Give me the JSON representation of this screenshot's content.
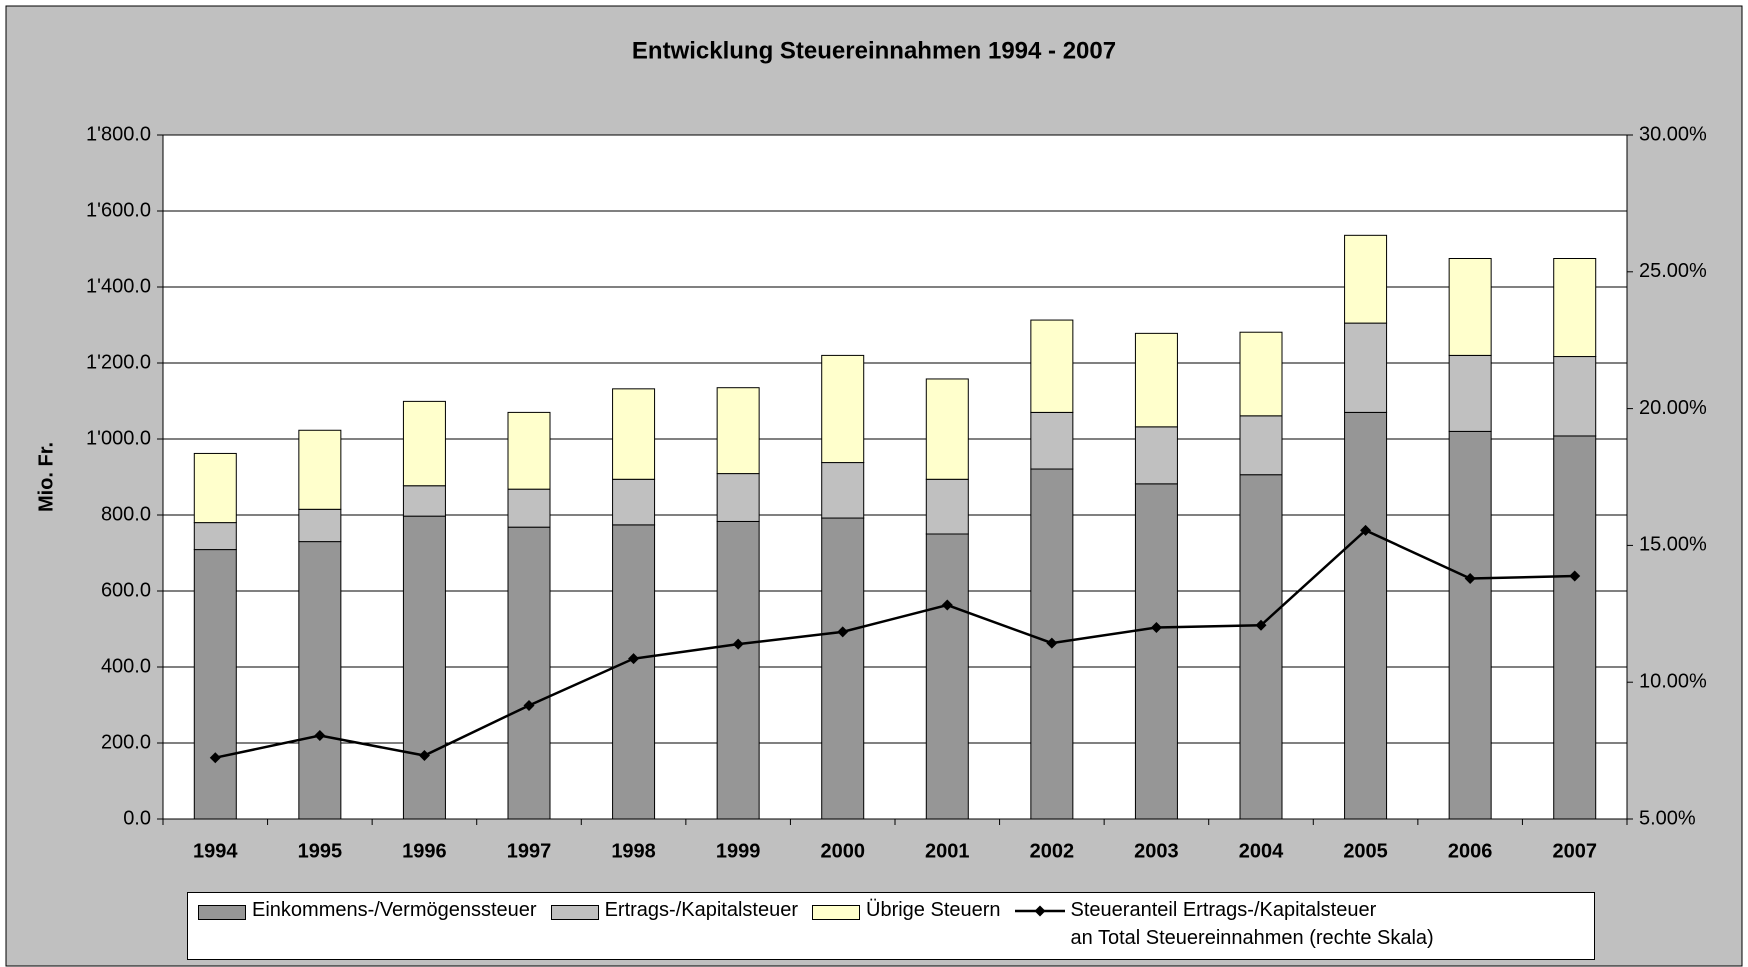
{
  "chart_data": {
    "type": "bar",
    "stacked": true,
    "title": "Entwicklung Steuereinnahmen 1994 - 2007",
    "ylabel": "Mio. Fr.",
    "categories": [
      "1994",
      "1995",
      "1996",
      "1997",
      "1998",
      "1999",
      "2000",
      "2001",
      "2002",
      "2003",
      "2004",
      "2005",
      "2006",
      "2007"
    ],
    "series": [
      {
        "name": "Einkommens-/Vermögenssteuer",
        "color": "#969696",
        "values": [
          709,
          730,
          797,
          768,
          774,
          783,
          792,
          750,
          921,
          882,
          906,
          1070,
          1020,
          1008
        ]
      },
      {
        "name": "Ertrags-/Kapitalsteuer",
        "color": "#c0c0c0",
        "values": [
          71,
          85,
          80,
          100,
          120,
          126,
          146,
          144,
          149,
          150,
          155,
          235,
          200,
          209
        ]
      },
      {
        "name": "Übrige Steuern",
        "color": "#ffffcc",
        "values": [
          182,
          208,
          222,
          202,
          238,
          226,
          282,
          264,
          243,
          246,
          220,
          231,
          255,
          258
        ]
      },
      {
        "name": "Steueranteil Ertrags-/Kapitalsteuer\nan Total Steuereinnahmen (rechte Skala)",
        "color": "#000000",
        "type": "line",
        "axis": "y2",
        "values": [
          7.24,
          8.05,
          7.32,
          9.15,
          10.86,
          11.39,
          11.84,
          12.82,
          11.43,
          12.0,
          12.08,
          15.55,
          13.79,
          13.88
        ]
      }
    ],
    "ylim": [
      0,
      1800
    ],
    "yticks": [
      {
        "value": 0,
        "label": "0.0"
      },
      {
        "value": 200,
        "label": "200.0"
      },
      {
        "value": 400,
        "label": "400.0"
      },
      {
        "value": 600,
        "label": "600.0"
      },
      {
        "value": 800,
        "label": "800.0"
      },
      {
        "value": 1000,
        "label": "1'000.0"
      },
      {
        "value": 1200,
        "label": "1'200.0"
      },
      {
        "value": 1400,
        "label": "1'400.0"
      },
      {
        "value": 1600,
        "label": "1'600.0"
      },
      {
        "value": 1800,
        "label": "1'800.0"
      }
    ],
    "y2lim": [
      5,
      30
    ],
    "y2ticks": [
      {
        "value": 5,
        "label": "5.00%"
      },
      {
        "value": 10,
        "label": "10.00%"
      },
      {
        "value": 15,
        "label": "15.00%"
      },
      {
        "value": 20,
        "label": "20.00%"
      },
      {
        "value": 25,
        "label": "25.00%"
      },
      {
        "value": 30,
        "label": "30.00%"
      }
    ],
    "grid": true,
    "legend": "bottom"
  }
}
